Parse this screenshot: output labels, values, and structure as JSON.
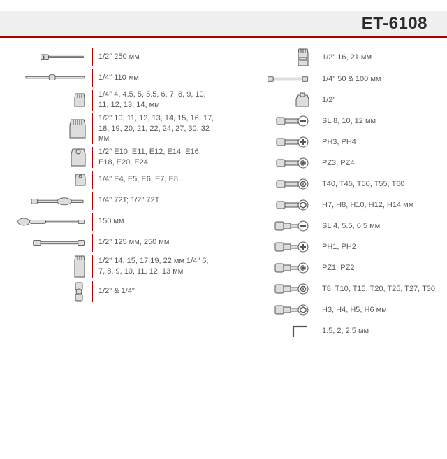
{
  "header": {
    "model": "ET-6108"
  },
  "colors": {
    "accent": "#b00000",
    "header_bg": "#f0f0f0",
    "icon_stroke": "#555555",
    "icon_fill": "#dddddd",
    "text": "#5a5a5a"
  },
  "left": [
    {
      "icon": "breaker-bar",
      "text": "1/2\" 250 мм"
    },
    {
      "icon": "sliding-t",
      "text": "1/4\" 110 мм"
    },
    {
      "icon": "socket-small",
      "text": "1/4\" 4, 4.5, 5, 5.5, 6, 7, 8, 9, 10, 11, 12, 13, 14, мм"
    },
    {
      "icon": "socket-large",
      "text": "1/2\" 10, 11, 12, 13, 14, 15, 16, 17, 18, 19, 20, 21, 22, 24, 27, 30, 32 мм"
    },
    {
      "icon": "e-socket-large",
      "text": "1/2\" E10, E11, E12, E14, E16, E18, E20, E24"
    },
    {
      "icon": "e-socket-small",
      "text": "1/4\" E4, E5, E6, E7, E8"
    },
    {
      "icon": "ratchet",
      "text": "1/4\" 72T; 1/2\" 72T"
    },
    {
      "icon": "screwdriver",
      "text": "150 мм"
    },
    {
      "icon": "extension",
      "text": "1/2\" 125 мм, 250 мм"
    },
    {
      "icon": "deep-socket",
      "text": "1/2\" 14, 15, 17,19, 22 мм 1/4\" 6, 7, 8, 9, 10, 11, 12, 13 мм"
    },
    {
      "icon": "u-joint",
      "text": "1/2\" & 1/4\""
    }
  ],
  "right": [
    {
      "icon": "spark-socket",
      "text": "1/2\" 16, 21 мм"
    },
    {
      "icon": "extension-small",
      "text": "1/4\" 50 & 100 мм"
    },
    {
      "icon": "adapter",
      "text": "1/2\""
    },
    {
      "icon": "bit-sl",
      "text": "SL 8, 10, 12 мм"
    },
    {
      "icon": "bit-ph",
      "text": "PH3, PH4"
    },
    {
      "icon": "bit-pz",
      "text": "PZ3, PZ4"
    },
    {
      "icon": "bit-torx",
      "text": "T40, T45, T50, T55, T60"
    },
    {
      "icon": "bit-hex",
      "text": "H7, H8, H10, H12, H14 мм"
    },
    {
      "icon": "bit-socket-sl",
      "text": "SL 4, 5.5, 6,5 мм"
    },
    {
      "icon": "bit-socket-ph",
      "text": "PH1, PH2"
    },
    {
      "icon": "bit-socket-pz",
      "text": "PZ1, PZ2"
    },
    {
      "icon": "bit-socket-torx",
      "text": "T8, T10, T15, T20, T25, T27, T30"
    },
    {
      "icon": "bit-socket-hex",
      "text": "H3, H4, H5, H6 мм"
    },
    {
      "icon": "hex-key",
      "text": "1.5, 2, 2.5 мм"
    }
  ]
}
